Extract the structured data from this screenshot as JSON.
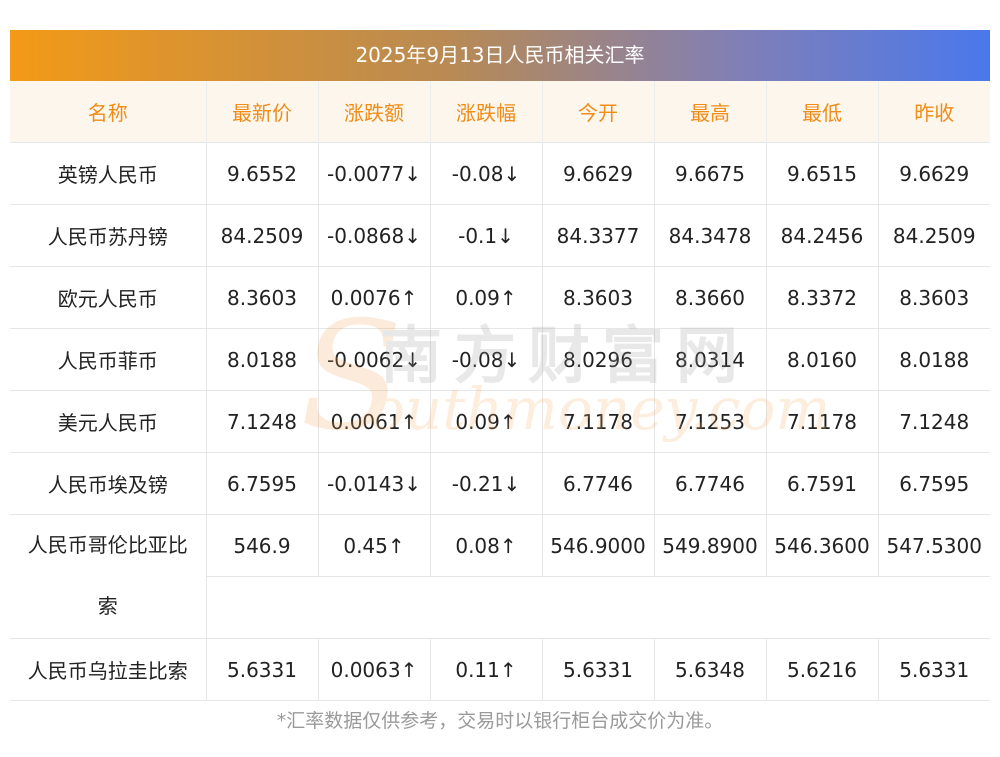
{
  "title": "2025年9月13日人民币相关汇率",
  "headers": [
    "名称",
    "最新价",
    "涨跌额",
    "涨跌幅",
    "今开",
    "最高",
    "最低",
    "昨收"
  ],
  "rows": [
    {
      "name": "英镑人民币",
      "latest": "9.6552",
      "change": "-0.0077↓",
      "pct": "-0.08↓",
      "open": "9.6629",
      "high": "9.6675",
      "low": "9.6515",
      "prev": "9.6629",
      "trend": "down"
    },
    {
      "name": "人民币苏丹镑",
      "latest": "84.2509",
      "change": "-0.0868↓",
      "pct": "-0.1↓",
      "open": "84.3377",
      "high": "84.3478",
      "low": "84.2456",
      "prev": "84.2509",
      "trend": "down"
    },
    {
      "name": "欧元人民币",
      "latest": "8.3603",
      "change": "0.0076↑",
      "pct": "0.09↑",
      "open": "8.3603",
      "high": "8.3660",
      "low": "8.3372",
      "prev": "8.3603",
      "trend": "up"
    },
    {
      "name": "人民币菲币",
      "latest": "8.0188",
      "change": "-0.0062↓",
      "pct": "-0.08↓",
      "open": "8.0296",
      "high": "8.0314",
      "low": "8.0160",
      "prev": "8.0188",
      "trend": "down"
    },
    {
      "name": "美元人民币",
      "latest": "7.1248",
      "change": "0.0061↑",
      "pct": "0.09↑",
      "open": "7.1178",
      "high": "7.1253",
      "low": "7.1178",
      "prev": "7.1248",
      "trend": "up"
    },
    {
      "name": "人民币埃及镑",
      "latest": "6.7595",
      "change": "-0.0143↓",
      "pct": "-0.21↓",
      "open": "6.7746",
      "high": "6.7746",
      "low": "6.7591",
      "prev": "6.7595",
      "trend": "down"
    },
    {
      "name_line1": "人民币哥伦比亚比",
      "name_line2": "索",
      "latest": "546.9",
      "change": "0.45↑",
      "pct": "0.08↑",
      "open": "546.9000",
      "high": "549.8900",
      "low": "546.3600",
      "prev": "547.5300",
      "trend": "up"
    },
    {
      "name": "人民币乌拉圭比索",
      "latest": "5.6331",
      "change": "0.0063↑",
      "pct": "0.11↑",
      "open": "5.6331",
      "high": "5.6348",
      "low": "5.6216",
      "prev": "5.6331",
      "trend": "up"
    }
  ],
  "watermark": {
    "cn": "南方财富网",
    "en": "outhmoney.com",
    "logo_letter": "S"
  },
  "footnote": "*汇率数据仅供参考，交易时以银行柜台成交价为准。",
  "colors": {
    "up": "#e8231c",
    "down": "#1f8a1f",
    "header_text": "#f08c18",
    "header_bg": "#fdf6ec",
    "title_gradient_start": "#f39a16",
    "title_gradient_end": "#4a78ec"
  }
}
